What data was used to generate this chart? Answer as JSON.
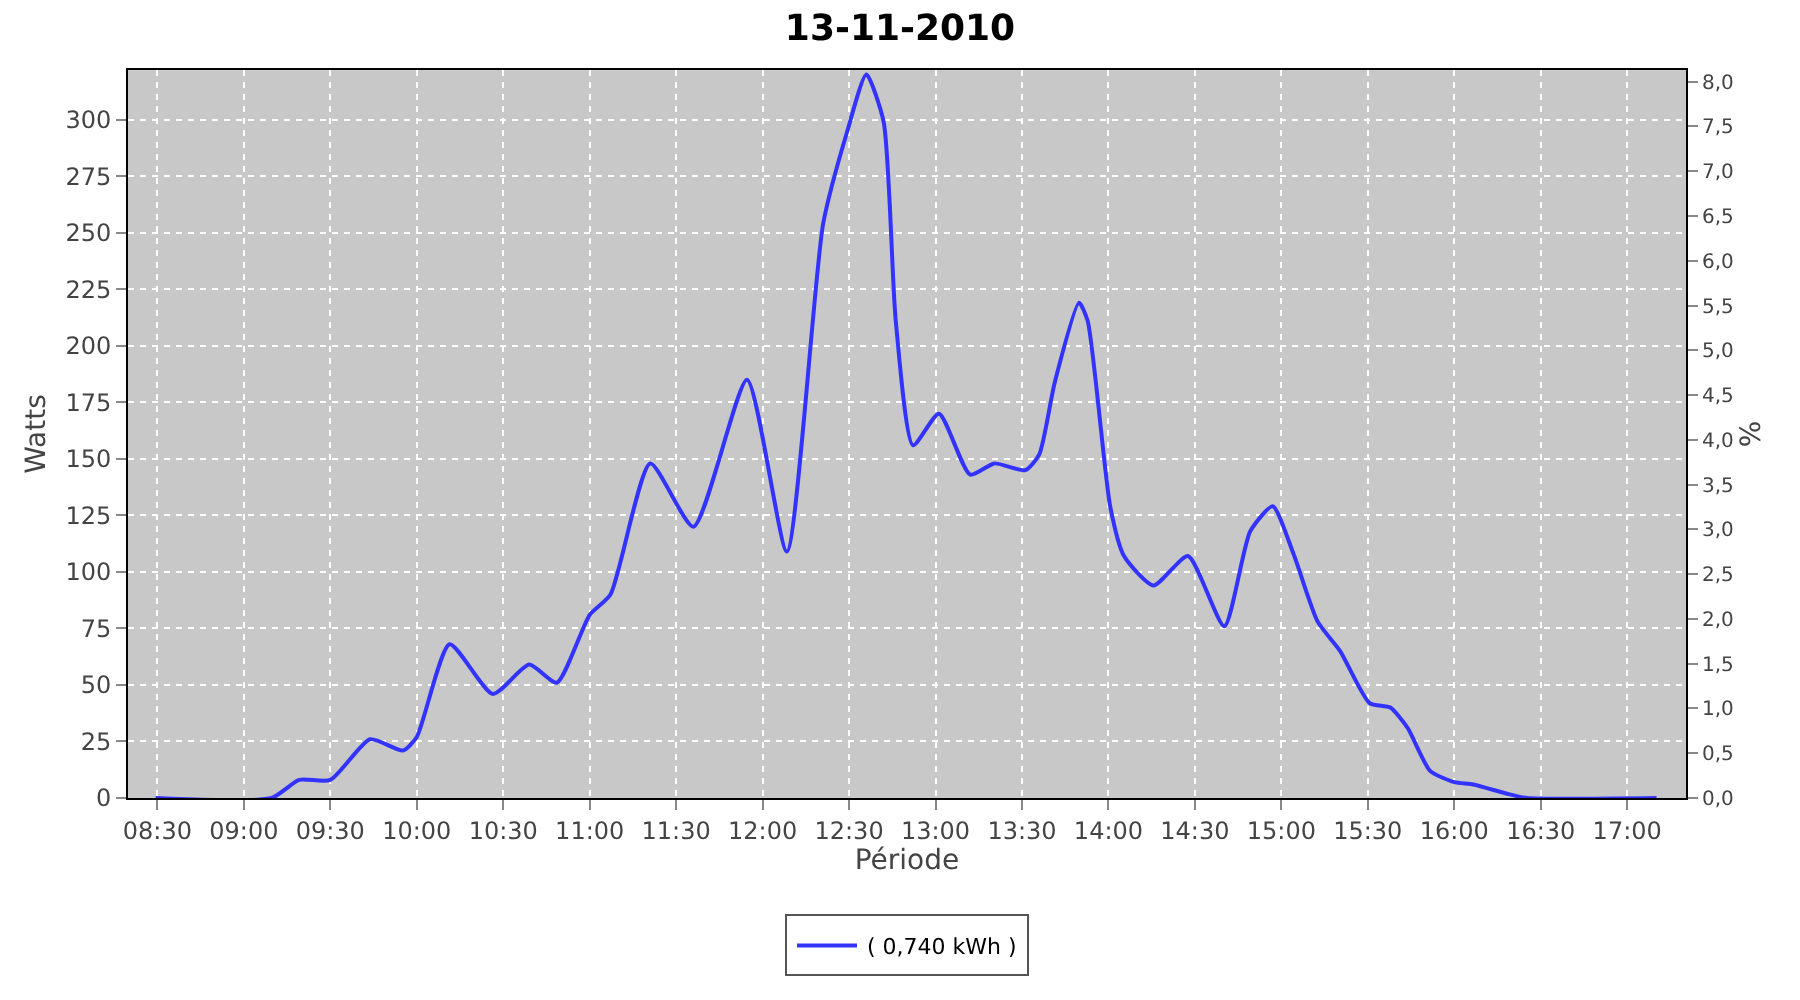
{
  "chart_data": {
    "type": "line",
    "title": "13-11-2010",
    "xlabel": "Période",
    "ylabel": "Watts",
    "y2label": "%",
    "x": [
      8.49,
      9.16,
      9.32,
      9.5,
      9.73,
      9.92,
      10.0,
      10.19,
      10.44,
      10.65,
      10.81,
      11.0,
      11.12,
      11.35,
      11.6,
      11.91,
      12.14,
      12.35,
      12.49,
      12.6,
      12.7,
      12.77,
      12.87,
      13.02,
      13.2,
      13.34,
      13.52,
      13.6,
      13.69,
      13.83,
      13.88,
      14.01,
      14.09,
      14.26,
      14.46,
      14.67,
      14.82,
      14.95,
      15.07,
      15.21,
      15.34,
      15.51,
      15.63,
      15.73,
      15.86,
      16.0,
      16.11,
      16.3,
      16.42,
      17.17
    ],
    "series": [
      {
        "name": "( 0,740 kWh )",
        "color": "#3333ff",
        "values": [
          0,
          0,
          8,
          8,
          26,
          21,
          27,
          68,
          46,
          59,
          51,
          81,
          90,
          148,
          120,
          185,
          109,
          254,
          295,
          320,
          299,
          211,
          156,
          170,
          143,
          148,
          145,
          152,
          184,
          219,
          211,
          129,
          107,
          94,
          107,
          76,
          118,
          129,
          108,
          78,
          65,
          42,
          40,
          31,
          12,
          7,
          6,
          2,
          0,
          0
        ]
      }
    ],
    "xlim": [
      8.33,
      17.34
    ],
    "xticks": [
      {
        "value": 8.5,
        "label": "08:30"
      },
      {
        "value": 9,
        "label": "09:00"
      },
      {
        "value": 9.5,
        "label": "09:30"
      },
      {
        "value": 10,
        "label": "10:00"
      },
      {
        "value": 10.5,
        "label": "10:30"
      },
      {
        "value": 11,
        "label": "11:00"
      },
      {
        "value": 11.5,
        "label": "11:30"
      },
      {
        "value": 12,
        "label": "12:00"
      },
      {
        "value": 12.5,
        "label": "12:30"
      },
      {
        "value": 13,
        "label": "13:00"
      },
      {
        "value": 13.5,
        "label": "13:30"
      },
      {
        "value": 14,
        "label": "14:00"
      },
      {
        "value": 14.5,
        "label": "14:30"
      },
      {
        "value": 15,
        "label": "15:00"
      },
      {
        "value": 15.5,
        "label": "15:30"
      },
      {
        "value": 16,
        "label": "16:00"
      },
      {
        "value": 16.5,
        "label": "16:30"
      },
      {
        "value": 17,
        "label": "17:00"
      }
    ],
    "ylim": [
      0,
      322
    ],
    "yticks": [
      0,
      25,
      50,
      75,
      100,
      125,
      150,
      175,
      200,
      225,
      250,
      275,
      300
    ],
    "y2lim": [
      0,
      8.13
    ],
    "y2ticks": [
      {
        "value": 0,
        "label": "0,0"
      },
      {
        "value": 0.5,
        "label": "0,5"
      },
      {
        "value": 1,
        "label": "1,0"
      },
      {
        "value": 1.5,
        "label": "1,5"
      },
      {
        "value": 2,
        "label": "2,0"
      },
      {
        "value": 2.5,
        "label": "2,5"
      },
      {
        "value": 3,
        "label": "3,0"
      },
      {
        "value": 3.5,
        "label": "3,5"
      },
      {
        "value": 4,
        "label": "4,0"
      },
      {
        "value": 4.5,
        "label": "4,5"
      },
      {
        "value": 5,
        "label": "5,0"
      },
      {
        "value": 5.5,
        "label": "5,5"
      },
      {
        "value": 6,
        "label": "6,0"
      },
      {
        "value": 6.5,
        "label": "6,5"
      },
      {
        "value": 7,
        "label": "7,0"
      },
      {
        "value": 7.5,
        "label": "7,5"
      },
      {
        "value": 8,
        "label": "8,0"
      }
    ],
    "grid": true,
    "legend": "bottom",
    "marker": "none",
    "line_style": "solid"
  }
}
